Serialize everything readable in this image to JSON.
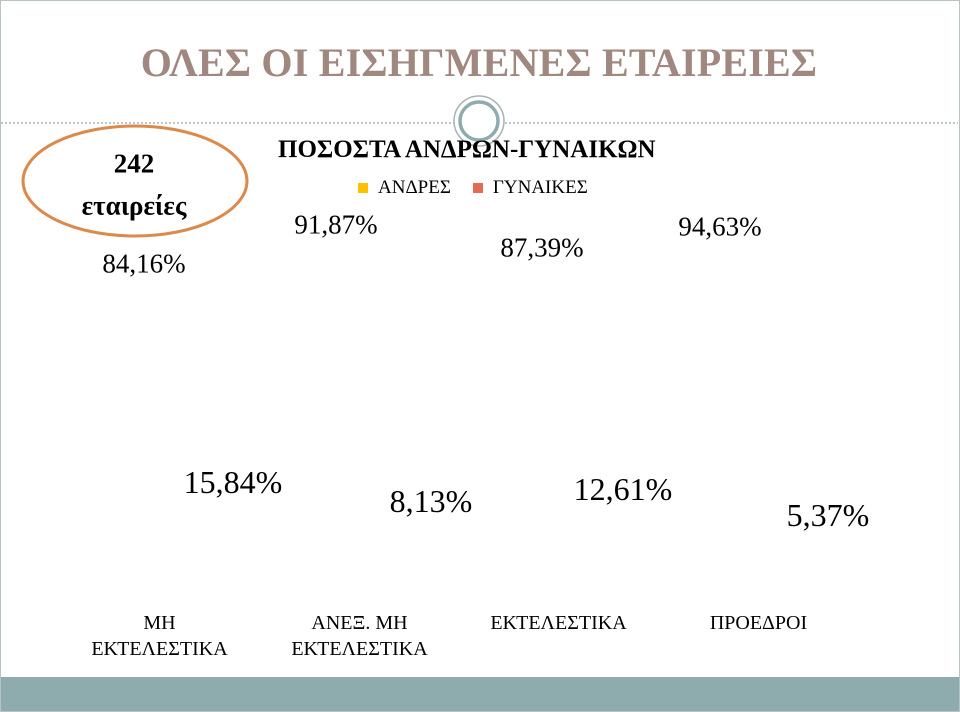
{
  "slide": {
    "title": "ΟΛΕΣ ΟΙ ΕΙΣΗΓΜΕΝΕΣ ΕΤΑΙΡΕΙΕΣ"
  },
  "callout": {
    "count": "242",
    "unit": "εταιρείες"
  },
  "colors": {
    "title": "#a08880",
    "callout_ring": "#dc8a4c",
    "divider_ring": "#8eabad",
    "footer_band": "#8eabad"
  },
  "chart_data": {
    "type": "bar",
    "title": "ΠΟΣΟΣΤΑ ΑΝΔΡΩΝ-ΓΥΝΑΙΚΩΝ",
    "categories": [
      "ΜΗ ΕΚΤΕΛΕΣΤΙΚΑ",
      "ΑΝΕΞ. ΜΗ ΕΚΤΕΛΕΣΤΙΚΑ",
      "ΕΚΤΕΛΕΣΤΙΚΑ",
      "ΠΡΟΕΔΡΟΙ"
    ],
    "series": [
      {
        "name": "ΑΝΔΡΕΣ",
        "color": "#ffc000",
        "values": [
          84.16,
          91.87,
          87.39,
          94.63
        ],
        "labels": [
          "84,16%",
          "91,87%",
          "87,39%",
          "94,63%"
        ]
      },
      {
        "name": "ΓΥΝΑΙΚΕΣ",
        "color": "#e06c55",
        "values": [
          15.84,
          8.13,
          12.61,
          5.37
        ],
        "labels": [
          "15,84%",
          "8,13%",
          "12,61%",
          "5,37%"
        ]
      }
    ],
    "legend": "top",
    "grid": false
  }
}
